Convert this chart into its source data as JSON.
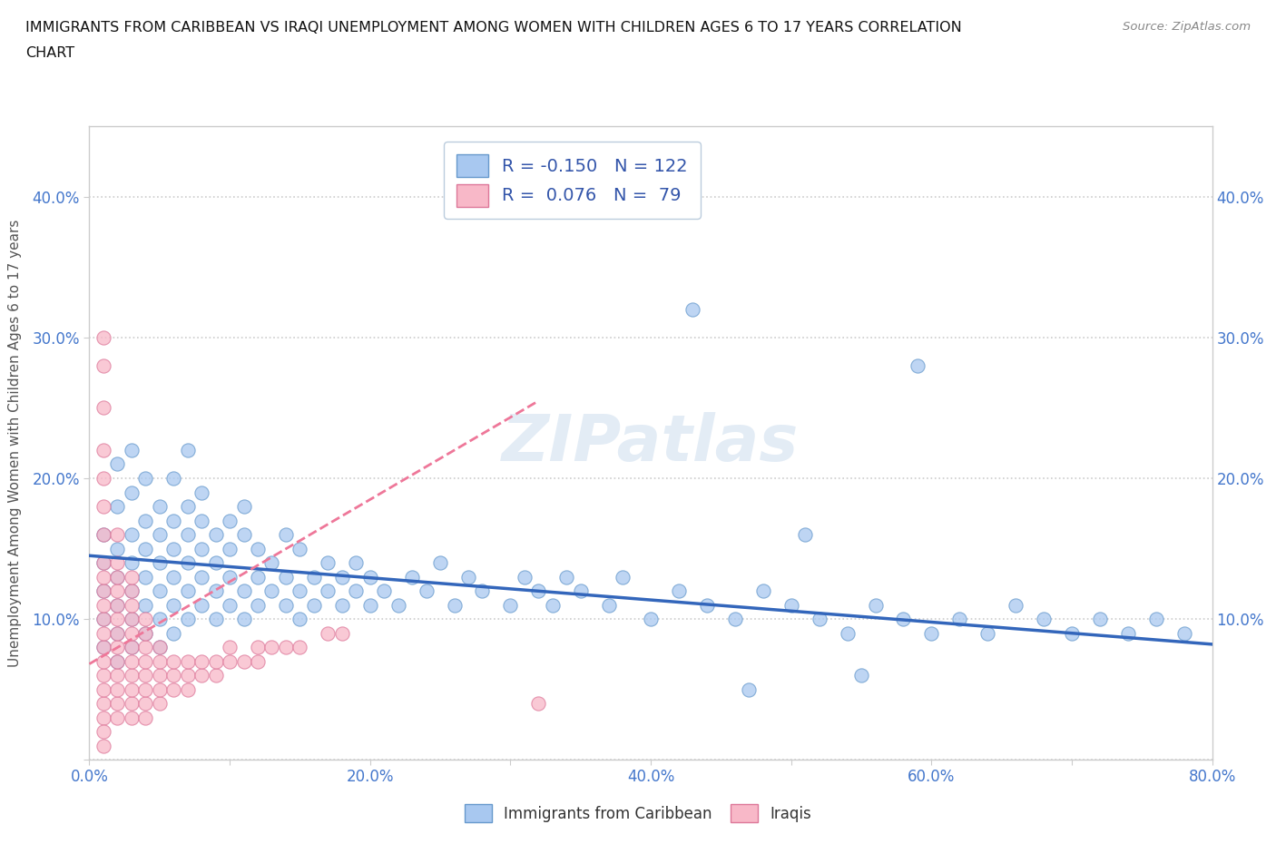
{
  "title_line1": "IMMIGRANTS FROM CARIBBEAN VS IRAQI UNEMPLOYMENT AMONG WOMEN WITH CHILDREN AGES 6 TO 17 YEARS CORRELATION",
  "title_line2": "CHART",
  "source": "Source: ZipAtlas.com",
  "ylabel": "Unemployment Among Women with Children Ages 6 to 17 years",
  "xlim": [
    0.0,
    0.8
  ],
  "ylim": [
    0.0,
    0.45
  ],
  "xticks": [
    0.0,
    0.1,
    0.2,
    0.3,
    0.4,
    0.5,
    0.6,
    0.7,
    0.8
  ],
  "xticklabels": [
    "0.0%",
    "",
    "20.0%",
    "",
    "40.0%",
    "",
    "60.0%",
    "",
    "80.0%"
  ],
  "yticks": [
    0.0,
    0.1,
    0.2,
    0.3,
    0.4
  ],
  "yticklabels": [
    "",
    "10.0%",
    "20.0%",
    "30.0%",
    "40.0%"
  ],
  "caribbean_color": "#a8c8f0",
  "iraqi_color": "#f8b8c8",
  "caribbean_edge": "#6699cc",
  "iraqi_edge": "#dd7799",
  "trendline_caribbean_color": "#3366bb",
  "trendline_iraqi_color": "#ee7799",
  "R_caribbean": -0.15,
  "N_caribbean": 122,
  "R_iraqi": 0.076,
  "N_iraqi": 79,
  "legend_label_caribbean": "Immigrants from Caribbean",
  "legend_label_iraqi": "Iraqis",
  "watermark": "ZIPatlas",
  "trendline_carib_x0": 0.0,
  "trendline_carib_x1": 0.8,
  "trendline_carib_y0": 0.145,
  "trendline_carib_y1": 0.082,
  "trendline_iraqi_x0": 0.0,
  "trendline_iraqi_x1": 0.32,
  "trendline_iraqi_y0": 0.068,
  "trendline_iraqi_y1": 0.255,
  "caribbean_x": [
    0.01,
    0.01,
    0.01,
    0.01,
    0.01,
    0.02,
    0.02,
    0.02,
    0.02,
    0.02,
    0.02,
    0.02,
    0.03,
    0.03,
    0.03,
    0.03,
    0.03,
    0.03,
    0.03,
    0.04,
    0.04,
    0.04,
    0.04,
    0.04,
    0.04,
    0.05,
    0.05,
    0.05,
    0.05,
    0.05,
    0.05,
    0.06,
    0.06,
    0.06,
    0.06,
    0.06,
    0.06,
    0.07,
    0.07,
    0.07,
    0.07,
    0.07,
    0.07,
    0.08,
    0.08,
    0.08,
    0.08,
    0.08,
    0.09,
    0.09,
    0.09,
    0.09,
    0.1,
    0.1,
    0.1,
    0.1,
    0.11,
    0.11,
    0.11,
    0.11,
    0.12,
    0.12,
    0.12,
    0.13,
    0.13,
    0.14,
    0.14,
    0.14,
    0.15,
    0.15,
    0.15,
    0.16,
    0.16,
    0.17,
    0.17,
    0.18,
    0.18,
    0.19,
    0.19,
    0.2,
    0.2,
    0.21,
    0.22,
    0.23,
    0.24,
    0.25,
    0.26,
    0.27,
    0.28,
    0.3,
    0.31,
    0.32,
    0.33,
    0.34,
    0.35,
    0.37,
    0.38,
    0.4,
    0.42,
    0.44,
    0.46,
    0.48,
    0.5,
    0.52,
    0.54,
    0.56,
    0.58,
    0.6,
    0.62,
    0.64,
    0.66,
    0.68,
    0.7,
    0.72,
    0.74,
    0.76,
    0.78,
    0.43,
    0.47,
    0.51,
    0.55,
    0.59
  ],
  "caribbean_y": [
    0.14,
    0.12,
    0.16,
    0.1,
    0.08,
    0.13,
    0.11,
    0.15,
    0.09,
    0.18,
    0.07,
    0.21,
    0.12,
    0.1,
    0.16,
    0.14,
    0.08,
    0.19,
    0.22,
    0.11,
    0.13,
    0.17,
    0.09,
    0.15,
    0.2,
    0.1,
    0.12,
    0.16,
    0.14,
    0.08,
    0.18,
    0.11,
    0.13,
    0.17,
    0.09,
    0.15,
    0.2,
    0.1,
    0.12,
    0.16,
    0.14,
    0.18,
    0.22,
    0.11,
    0.13,
    0.17,
    0.15,
    0.19,
    0.1,
    0.12,
    0.16,
    0.14,
    0.11,
    0.13,
    0.17,
    0.15,
    0.1,
    0.12,
    0.16,
    0.18,
    0.11,
    0.13,
    0.15,
    0.12,
    0.14,
    0.11,
    0.13,
    0.16,
    0.1,
    0.12,
    0.15,
    0.11,
    0.13,
    0.12,
    0.14,
    0.11,
    0.13,
    0.12,
    0.14,
    0.11,
    0.13,
    0.12,
    0.11,
    0.13,
    0.12,
    0.14,
    0.11,
    0.13,
    0.12,
    0.11,
    0.13,
    0.12,
    0.11,
    0.13,
    0.12,
    0.11,
    0.13,
    0.1,
    0.12,
    0.11,
    0.1,
    0.12,
    0.11,
    0.1,
    0.09,
    0.11,
    0.1,
    0.09,
    0.1,
    0.09,
    0.11,
    0.1,
    0.09,
    0.1,
    0.09,
    0.1,
    0.09,
    0.32,
    0.05,
    0.16,
    0.06,
    0.28
  ],
  "iraqi_x": [
    0.01,
    0.01,
    0.01,
    0.01,
    0.01,
    0.01,
    0.01,
    0.01,
    0.01,
    0.01,
    0.01,
    0.01,
    0.01,
    0.01,
    0.01,
    0.01,
    0.01,
    0.01,
    0.01,
    0.01,
    0.01,
    0.02,
    0.02,
    0.02,
    0.02,
    0.02,
    0.02,
    0.02,
    0.02,
    0.02,
    0.02,
    0.02,
    0.02,
    0.02,
    0.03,
    0.03,
    0.03,
    0.03,
    0.03,
    0.03,
    0.03,
    0.03,
    0.03,
    0.03,
    0.03,
    0.04,
    0.04,
    0.04,
    0.04,
    0.04,
    0.04,
    0.04,
    0.04,
    0.05,
    0.05,
    0.05,
    0.05,
    0.05,
    0.06,
    0.06,
    0.06,
    0.07,
    0.07,
    0.07,
    0.08,
    0.08,
    0.09,
    0.09,
    0.1,
    0.1,
    0.11,
    0.12,
    0.12,
    0.13,
    0.14,
    0.15,
    0.17,
    0.18,
    0.32
  ],
  "iraqi_y": [
    0.03,
    0.04,
    0.05,
    0.06,
    0.07,
    0.08,
    0.09,
    0.1,
    0.11,
    0.12,
    0.13,
    0.14,
    0.16,
    0.18,
    0.2,
    0.22,
    0.25,
    0.28,
    0.3,
    0.02,
    0.01,
    0.03,
    0.04,
    0.05,
    0.06,
    0.07,
    0.08,
    0.09,
    0.1,
    0.11,
    0.12,
    0.13,
    0.14,
    0.16,
    0.03,
    0.04,
    0.05,
    0.06,
    0.07,
    0.08,
    0.09,
    0.1,
    0.11,
    0.12,
    0.13,
    0.03,
    0.04,
    0.05,
    0.06,
    0.07,
    0.08,
    0.09,
    0.1,
    0.04,
    0.05,
    0.06,
    0.07,
    0.08,
    0.05,
    0.06,
    0.07,
    0.05,
    0.06,
    0.07,
    0.06,
    0.07,
    0.06,
    0.07,
    0.07,
    0.08,
    0.07,
    0.07,
    0.08,
    0.08,
    0.08,
    0.08,
    0.09,
    0.09,
    0.04
  ]
}
